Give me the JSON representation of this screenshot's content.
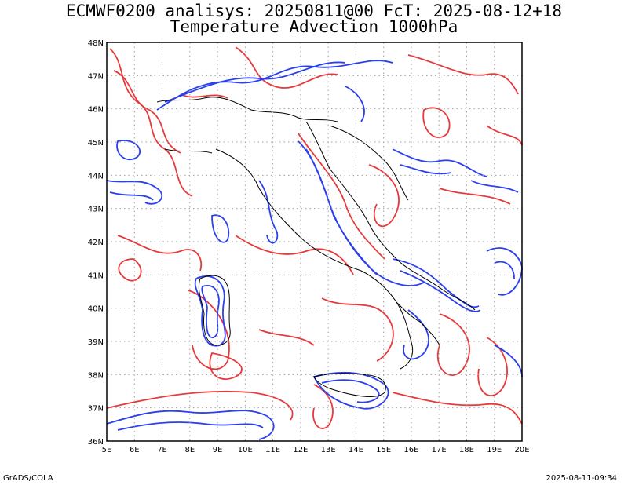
{
  "title": {
    "line1": "ECMWF0200 analisys: 20250811@00 FcT: 2025-08-12+18",
    "line2": "Temperature Advection 1000hPa"
  },
  "footer": {
    "left": "GrADS/COLA",
    "right": "2025-08-11-09:34"
  },
  "map": {
    "lon_range": [
      5,
      20
    ],
    "lat_range": [
      36,
      48
    ],
    "grid": "dotted",
    "x_ticks": [
      "5E",
      "6E",
      "7E",
      "8E",
      "9E",
      "10E",
      "11E",
      "12E",
      "13E",
      "14E",
      "15E",
      "16E",
      "17E",
      "18E",
      "19E",
      "20E"
    ],
    "y_ticks": [
      "36N",
      "37N",
      "38N",
      "39N",
      "40N",
      "41N",
      "42N",
      "43N",
      "44N",
      "45N",
      "46N",
      "47N",
      "48N"
    ],
    "colors": {
      "positive_contour": "#e8393a",
      "negative_contour": "#2a3ff0",
      "coastline": "#000000",
      "grid": "#a0a0a0"
    }
  }
}
